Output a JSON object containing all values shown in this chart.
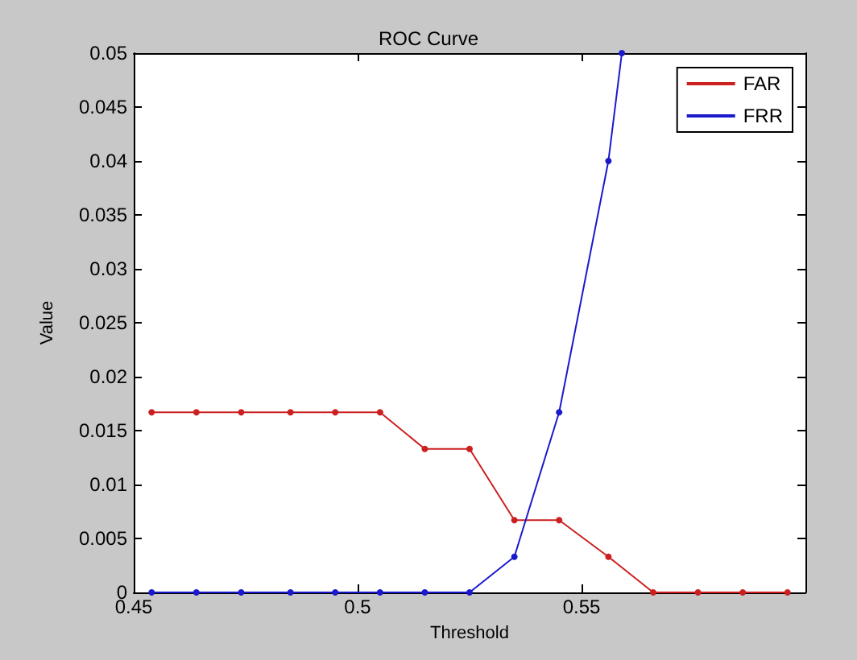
{
  "chart_data": {
    "type": "line",
    "title": "ROC Curve",
    "xlabel": "Threshold",
    "ylabel": "Value",
    "xlim": [
      0.45,
      0.6
    ],
    "xticks": [
      0.45,
      0.5,
      0.55,
      {
        "value": 0.6,
        "label": null
      }
    ],
    "ylim": [
      0,
      0.05
    ],
    "yticks": [
      0,
      0.005,
      0.01,
      0.015,
      0.02,
      0.025,
      0.03,
      0.035,
      0.04,
      0.045,
      0.05
    ],
    "series": [
      {
        "name": "FAR",
        "color": "#cc2020",
        "x": [
          0.454,
          0.464,
          0.474,
          0.485,
          0.495,
          0.505,
          0.515,
          0.525,
          0.535,
          0.545,
          0.556,
          0.566,
          0.576,
          0.586,
          0.596
        ],
        "values": [
          0.0167,
          0.0167,
          0.0167,
          0.0167,
          0.0167,
          0.0167,
          0.0133,
          0.0133,
          0.0067,
          0.0067,
          0.0033,
          0,
          0,
          0,
          0
        ]
      },
      {
        "name": "FRR",
        "color": "#1a1acc",
        "x": [
          0.454,
          0.464,
          0.474,
          0.485,
          0.495,
          0.505,
          0.515,
          0.525,
          0.535,
          0.545,
          0.556,
          0.559
        ],
        "values": [
          0,
          0,
          0,
          0,
          0,
          0,
          0,
          0,
          0.0033,
          0.0167,
          0.04,
          0.05
        ]
      }
    ],
    "legend": "top right",
    "grid": false,
    "marker": "circle",
    "line_style": "solid"
  }
}
